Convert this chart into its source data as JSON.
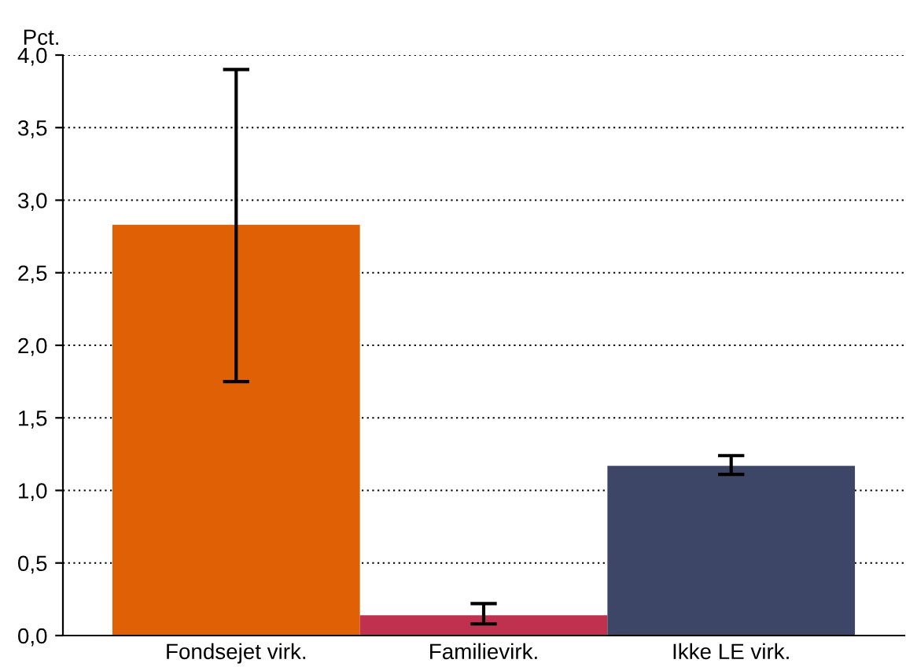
{
  "chart_data": {
    "type": "bar",
    "ylabel": "Pct.",
    "categories": [
      "Fondsejet virk.",
      "Familievirk.",
      "Ikke LE virk."
    ],
    "values": [
      2.83,
      0.14,
      1.17
    ],
    "colors": [
      "#e06005",
      "#c0304f",
      "#3d4666"
    ],
    "errors": [
      [
        1.75,
        3.9
      ],
      [
        0.08,
        0.22
      ],
      [
        1.11,
        1.24
      ]
    ],
    "ylim": [
      0,
      4
    ],
    "yticks": [
      {
        "value": 0,
        "label": "0,0"
      },
      {
        "value": 0.5,
        "label": "0,5"
      },
      {
        "value": 1,
        "label": "1,0"
      },
      {
        "value": 1.5,
        "label": "1,5"
      },
      {
        "value": 2,
        "label": "2,0"
      },
      {
        "value": 2.5,
        "label": "2,5"
      },
      {
        "value": 3,
        "label": "3,0"
      },
      {
        "value": 3.5,
        "label": "3,5"
      },
      {
        "value": 4,
        "label": "4,0"
      }
    ],
    "grid": "y"
  }
}
